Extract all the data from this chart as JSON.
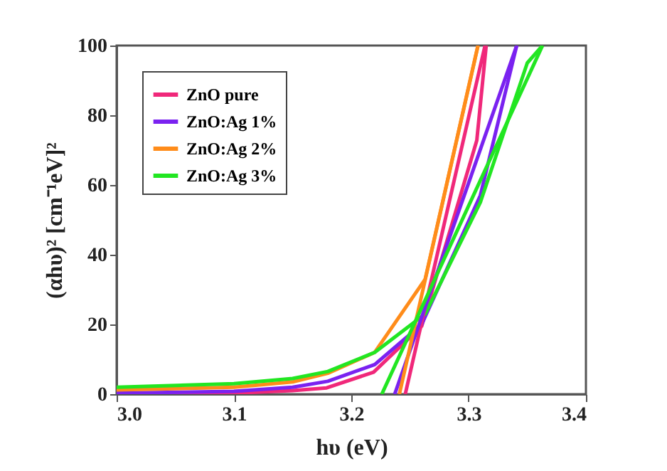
{
  "chart_data": {
    "type": "line",
    "xlabel": "hυ (eV)",
    "ylabel": "(αhυ)² [cm⁻¹eV]²",
    "xlim": [
      3.0,
      3.4
    ],
    "xticks": [
      {
        "value": 3.0,
        "label": "3.0"
      },
      {
        "value": 3.1,
        "label": "3.1"
      },
      {
        "value": 3.2,
        "label": "3.2"
      },
      {
        "value": 3.3,
        "label": "3.3"
      },
      {
        "value": 3.4,
        "label": "3.4"
      }
    ],
    "ylim": [
      0,
      100
    ],
    "yticks": [
      0,
      20,
      40,
      60,
      80,
      100
    ],
    "grid": false,
    "legend": "top left",
    "marker": "none",
    "line_style": "solid",
    "series": [
      {
        "name": "ZnO pure",
        "color": "#f0287a",
        "x": [
          3.0,
          3.1,
          3.15,
          3.179,
          3.219,
          3.26,
          3.307,
          3.315
        ],
        "values": [
          0,
          0.3,
          1,
          1.8,
          6.3,
          19.5,
          72.8,
          100
        ]
      },
      {
        "name": "ZnO:Ag 1%",
        "color": "#7a22f0",
        "x": [
          3.0,
          3.1,
          3.15,
          3.18,
          3.22,
          3.26,
          3.31,
          3.341
        ],
        "values": [
          0.3,
          0.8,
          2,
          3.7,
          8.5,
          20,
          57,
          100
        ]
      },
      {
        "name": "ZnO:Ag 2%",
        "color": "#ff8c1a",
        "x": [
          3.0,
          3.1,
          3.15,
          3.18,
          3.22,
          3.263,
          3.308
        ],
        "values": [
          1.2,
          2,
          3.5,
          6,
          12,
          33,
          100
        ]
      },
      {
        "name": "ZnO:Ag 3%",
        "color": "#22e622",
        "x": [
          3.0,
          3.1,
          3.15,
          3.18,
          3.22,
          3.263,
          3.31,
          3.35,
          3.363
        ],
        "values": [
          2,
          3,
          4.5,
          6.5,
          12,
          23,
          55,
          95,
          100
        ]
      },
      {
        "type": "line",
        "color": "#f0287a",
        "x": [
          3.246,
          3.314
        ],
        "values": [
          0,
          100
        ]
      },
      {
        "type": "line",
        "color": "#7a22f0",
        "x": [
          3.237,
          3.341
        ],
        "values": [
          0,
          100
        ]
      },
      {
        "type": "line",
        "color": "#ff8c1a",
        "x": [
          3.241,
          3.308
        ],
        "values": [
          0,
          100
        ]
      },
      {
        "type": "line",
        "color": "#22e622",
        "x": [
          3.226,
          3.363
        ],
        "values": [
          0,
          100
        ]
      }
    ]
  }
}
